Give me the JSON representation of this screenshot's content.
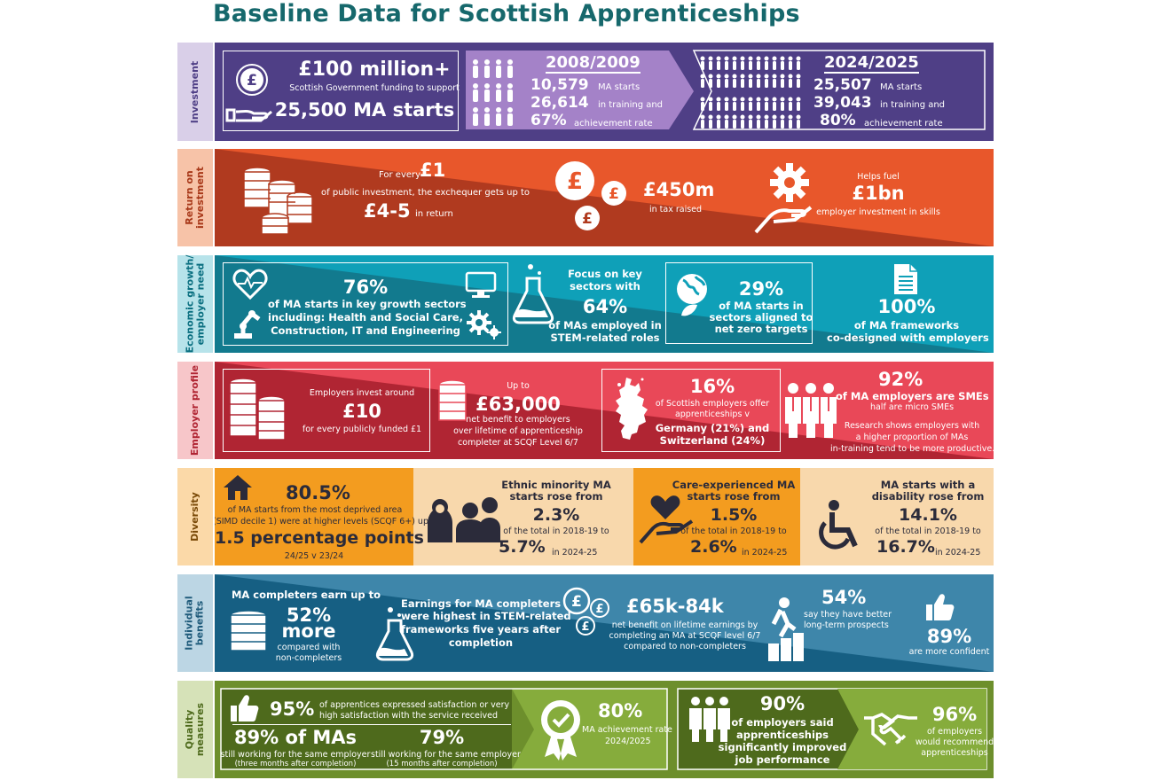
{
  "title": "Baseline Data for Scottish Apprenticeships",
  "colors": {
    "title": "#16686c",
    "investment": "#4f3f86",
    "roi": "#e8572b",
    "growth": "#0fa0b8",
    "employer": "#e94858",
    "diversity": "#f39c1f",
    "individual": "#1e6f95",
    "quality": "#6d8f2c"
  },
  "investment": {
    "label": "Investment",
    "amount": "£100 million+",
    "amount_sub": "Scottish Government funding to support",
    "starts": "25,500 MA starts",
    "y1": {
      "year": "2008/2009",
      "n1": "10,579",
      "t1": "MA starts",
      "n2": "26,614",
      "t2": "in training and",
      "n3": "67%",
      "t3": "achievement rate"
    },
    "y2": {
      "year": "2024/2025",
      "n1": "25,507",
      "t1": "MA starts",
      "n2": "39,043",
      "t2": "in training and",
      "n3": "80%",
      "t3": "achievement rate"
    }
  },
  "roi": {
    "label": "Return on investment",
    "l1": "Return on",
    "l2": "investment",
    "for_every": "For every",
    "one": "£1",
    "public": "of public investment, the exchequer gets up to",
    "ret": "£4-5",
    "in_return": "in return",
    "tax": "£450m",
    "tax_sub": "in tax raised",
    "fuel": "Helps fuel",
    "bn": "£1bn",
    "bn_sub": "employer investment in skills"
  },
  "growth": {
    "l1": "Economic growth/",
    "l2": "employer need",
    "pct": "76%",
    "p1": "of MA starts in key growth sectors",
    "p2": "including: Health and Social Care,",
    "p3": "Construction, IT and Engineering",
    "focus1": "Focus on key",
    "focus2": "sectors with",
    "stem": "64%",
    "stem1": "of MAs employed in",
    "stem2": "STEM-related roles",
    "nz": "29%",
    "nz1": "of MA starts in",
    "nz2": "sectors aligned to",
    "nz3": "net zero targets",
    "fw": "100%",
    "fw1": "of MA frameworks",
    "fw2": "co-designed with employers"
  },
  "employer": {
    "label": "Employer profile",
    "inv": "Employers invest around",
    "ten": "£10",
    "per": "for every publicly funded £1",
    "upto": "Up to",
    "ben": "£63,000",
    "ben1": "net benefit to employers",
    "ben2": "over lifetime of apprenticeship",
    "ben3": "completer at SCQF Level 6/7",
    "sc": "16%",
    "sc1": "of Scottish employers offer",
    "sc2": "apprenticeships v",
    "sc3": "Germany (21%) and",
    "sc4": "Switzerland (24%)",
    "sme": "92%",
    "sme1": "of MA employers are SMEs",
    "sme2": "half are micro SMEs",
    "sme3": "Research shows employers with",
    "sme4": "a higher proportion of MAs",
    "sme5": "in-training tend to be more productive."
  },
  "diversity": {
    "label": "Diversity",
    "simd": "80.5%",
    "simd1": "of MA starts from the most deprived area",
    "simd2": "(SIMD decile 1) were at higher levels (SCQF 6+) up",
    "pp": "1.5 percentage points",
    "ppv": "24/25 v 23/24",
    "eth1": "Ethnic minority MA",
    "eth2": "starts rose from",
    "ethA": "2.3%",
    "ethT": "of the total in 2018-19 to",
    "ethB": "5.7%",
    "ethY": "in 2024-25",
    "care1": "Care-experienced MA",
    "care2": "starts rose from",
    "careA": "1.5%",
    "careT": "of the total in 2018-19 to",
    "careB": "2.6%",
    "careY": "in 2024-25",
    "dis1": "MA starts with a",
    "dis2": "disability rose from",
    "disA": "14.1%",
    "disT": "of the total in 2018-19 to",
    "disB": "16.7%",
    "disY": "in 2024-25"
  },
  "individual": {
    "l1": "Individual",
    "l2": "benefits",
    "earn": "MA completers earn up to",
    "more1": "52%",
    "more2": "more",
    "comp1": "compared with",
    "comp2": "non-completers",
    "stem1": "Earnings for MA completers",
    "stem2": "were highest in STEM-related",
    "stem3": "frameworks five years after",
    "stem4": "completion",
    "life": "£65k-84k",
    "life1": "net benefit on lifetime earnings  by",
    "life2": "completing an MA at SCQF level 6/7",
    "life3": "compared to non-completers",
    "pros": "54%",
    "pros1": "say they have better",
    "pros2": "long-term prospects",
    "conf": "89%",
    "conf1": "are more confident"
  },
  "quality": {
    "l1": "Quality",
    "l2": "measures",
    "sat": "95%",
    "sat1": "of apprentices expressed satisfaction or very",
    "sat2": "high satisfaction with the service received",
    "same": "89% of MAs",
    "same1": "still working for the same employer",
    "same2": "(three months after completion)",
    "s79": "79%",
    "s791": "still working for the same employer",
    "s792": "(15 months after completion)",
    "ach": "80%",
    "ach1": "MA achievement rate",
    "ach2": "2024/2025",
    "imp": "90%",
    "imp1": "of employers said",
    "imp2": "apprenticeships",
    "imp3": "significantly improved",
    "imp4": "job performance",
    "rec": "96%",
    "rec1": "of employers",
    "rec2": "would recommend",
    "rec3": "apprenticeships"
  }
}
